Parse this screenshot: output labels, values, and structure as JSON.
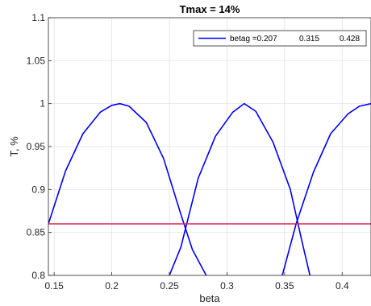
{
  "chart_data": {
    "type": "line",
    "title": "Tmax = 14%",
    "xlabel": "beta",
    "ylabel": "T, %",
    "xlim": [
      0.145,
      0.425
    ],
    "ylim": [
      0.8,
      1.1
    ],
    "xticks": [
      0.15,
      0.2,
      0.25,
      0.3,
      0.35,
      0.4
    ],
    "xtick_labels": [
      "0.15",
      "0.2",
      "0.25",
      "0.3",
      "0.35",
      "0.4"
    ],
    "yticks": [
      0.8,
      0.85,
      0.9,
      0.95,
      1.0,
      1.05,
      1.1
    ],
    "ytick_labels": [
      "0.8",
      "0.85",
      "0.9",
      "0.95",
      "1",
      "1.05",
      "1.1"
    ],
    "grid": true,
    "legend": {
      "placement": "top-right",
      "entries": [
        {
          "label": "betag =0.207",
          "extra": [
            "0.315",
            "0.428"
          ],
          "color": "#0000ff"
        }
      ]
    },
    "series": [
      {
        "name": "betag =0.207",
        "color": "#0000ff",
        "x": [
          0.145,
          0.16,
          0.175,
          0.19,
          0.2,
          0.207,
          0.215,
          0.23,
          0.245,
          0.26,
          0.27,
          0.282
        ],
        "y": [
          0.86,
          0.922,
          0.965,
          0.99,
          0.998,
          1.0,
          0.997,
          0.978,
          0.936,
          0.871,
          0.83,
          0.8
        ]
      },
      {
        "name": "",
        "color": "#0000ff",
        "x": [
          0.25,
          0.26,
          0.275,
          0.29,
          0.305,
          0.315,
          0.325,
          0.34,
          0.355,
          0.365,
          0.372
        ],
        "y": [
          0.8,
          0.833,
          0.913,
          0.962,
          0.99,
          1.0,
          0.991,
          0.955,
          0.9,
          0.84,
          0.8
        ]
      },
      {
        "name": "",
        "color": "#0000ff",
        "x": [
          0.348,
          0.36,
          0.375,
          0.39,
          0.405,
          0.415,
          0.425
        ],
        "y": [
          0.8,
          0.86,
          0.92,
          0.965,
          0.988,
          0.997,
          1.0
        ]
      },
      {
        "name": "",
        "color": "#d7264f",
        "x": [
          0.145,
          0.425
        ],
        "y": [
          0.86,
          0.86
        ]
      }
    ]
  }
}
